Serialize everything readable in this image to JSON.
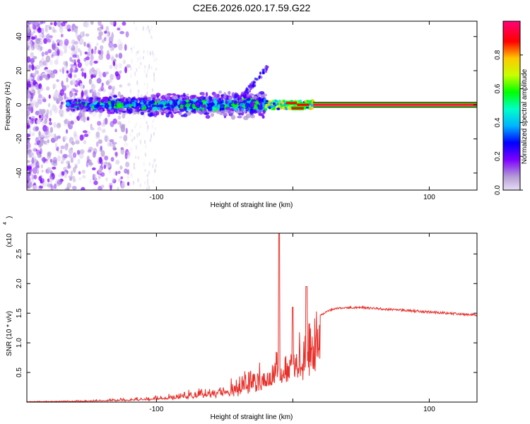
{
  "title": "C2E6.2026.020.17.59.G22",
  "chart_data": [
    {
      "type": "heatmap",
      "xlabel": "Height of straight line (km)",
      "ylabel": "Frequency (Hz)",
      "xlim": [
        -195,
        135
      ],
      "ylim": [
        -50,
        49
      ],
      "xticks": [
        -100,
        0,
        100
      ],
      "xtick_labels": [
        "-100",
        "",
        "100"
      ],
      "yticks": [
        -40,
        -20,
        0,
        20,
        40
      ],
      "ytick_labels": [
        "-40",
        "-20",
        "0",
        "20",
        "40"
      ],
      "colorbar": {
        "label": "Normalized spectral amplitude",
        "range": [
          0,
          1
        ],
        "ticks": [
          0,
          0.2,
          0.4,
          0.6,
          0.8
        ],
        "tick_labels": [
          "0.0",
          "0.2",
          "0.4",
          "0.6",
          "0.8"
        ],
        "colormap": [
          "#b49bd6",
          "#7d00ff",
          "#0000ff",
          "#00b4ff",
          "#00ffc8",
          "#00ff00",
          "#c8ff00",
          "#ffc800",
          "#ff0000",
          "#ff0078"
        ]
      },
      "band": {
        "description_free": true,
        "steady_line_x_range": [
          15,
          135
        ],
        "steady_line_freq": 0,
        "cluster_x_range": [
          -165,
          -20
        ],
        "cluster_freq_range": [
          -8,
          8
        ]
      },
      "grid": false
    },
    {
      "type": "line",
      "xlabel": "Height of straight line (km)",
      "ylabel": "SNR (10 * v/v)",
      "yscale_label": "(x10",
      "yscale_exp": "4",
      "xlim": [
        -195,
        135
      ],
      "ylim": [
        0,
        2.85
      ],
      "xticks": [
        -100,
        0,
        100
      ],
      "xtick_labels": [
        "-100",
        "",
        "100"
      ],
      "yticks": [
        0.5,
        1.0,
        1.5,
        2.0,
        2.5
      ],
      "ytick_labels": [
        "0.5",
        "1.0",
        "1.5",
        "2.0",
        "2.5"
      ],
      "color": "#e8302a",
      "series": [
        {
          "x": [
            -195,
            -170,
            -150,
            -130,
            -110,
            -100,
            -90,
            -80,
            -70,
            -60,
            -50,
            -40,
            -35,
            -30,
            -25,
            -20,
            -15,
            -12,
            -10,
            -8,
            -5,
            -2,
            0,
            5,
            10,
            15,
            20,
            25,
            30,
            40,
            50,
            60,
            80,
            100,
            120,
            135
          ],
          "values": [
            0.01,
            0.02,
            0.03,
            0.05,
            0.08,
            0.1,
            0.13,
            0.16,
            0.2,
            0.25,
            0.3,
            0.38,
            0.45,
            0.5,
            0.55,
            0.62,
            0.7,
            0.9,
            0.85,
            0.75,
            0.8,
            0.9,
            1.0,
            1.15,
            1.3,
            1.38,
            1.45,
            1.52,
            1.57,
            1.59,
            1.6,
            1.58,
            1.55,
            1.52,
            1.49,
            1.47
          ]
        }
      ],
      "spikes": [
        {
          "x": -10,
          "value": 2.85
        },
        {
          "x": 10,
          "value": 1.95
        },
        {
          "x": 0,
          "value": 1.6
        }
      ],
      "grid": false
    }
  ]
}
